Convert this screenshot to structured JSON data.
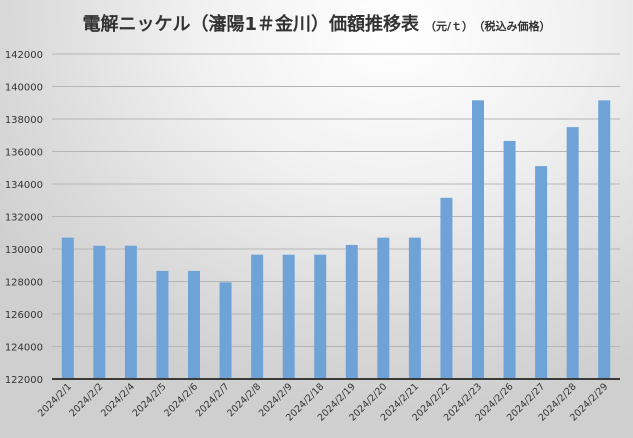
{
  "chart_data": {
    "type": "bar",
    "title": "電解ニッケル（瀋陽1＃金川）価額推移表",
    "unit": "（元/ｔ）",
    "note": "（税込み価格）",
    "xlabel": "",
    "ylabel": "",
    "ylim": [
      122000,
      142000
    ],
    "yticks": [
      122000,
      124000,
      126000,
      128000,
      130000,
      132000,
      134000,
      136000,
      138000,
      140000,
      142000
    ],
    "grid": true,
    "legend": "none",
    "bar_color": "#6fa3d8",
    "categories": [
      "2024/2/1",
      "2024/2/2",
      "2024/2/4",
      "2024/2/5",
      "2024/2/6",
      "2024/2/7",
      "2024/2/8",
      "2024/2/9",
      "2024/2/18",
      "2024/2/19",
      "2024/2/20",
      "2024/2/21",
      "2024/2/22",
      "2024/2/23",
      "2024/2/26",
      "2024/2/27",
      "2024/2/28",
      "2024/2/29"
    ],
    "values": [
      130700,
      130200,
      130200,
      128650,
      128650,
      127950,
      129650,
      129650,
      129650,
      130250,
      130700,
      130700,
      133150,
      139150,
      136650,
      135100,
      137500,
      139150
    ]
  }
}
